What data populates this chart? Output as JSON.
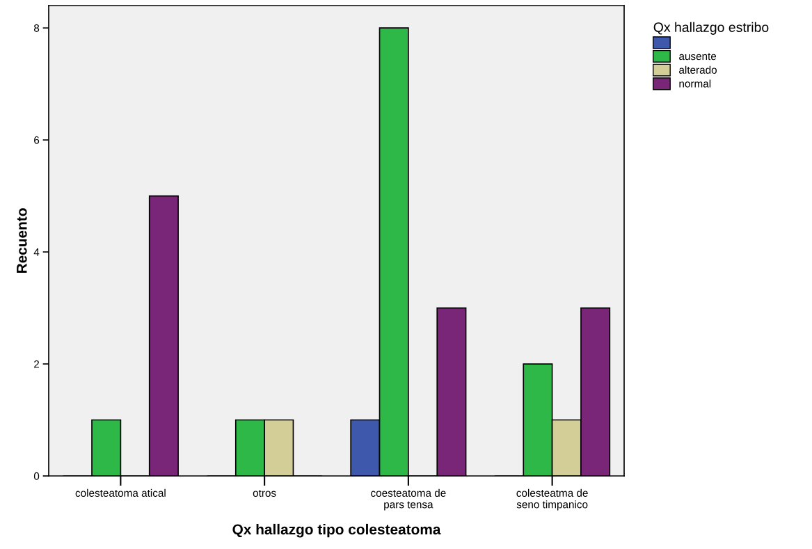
{
  "chart_data": {
    "type": "bar",
    "xlabel": "Qx hallazgo tipo colesteatoma",
    "ylabel": "Recuento",
    "legend_title": "Qx hallazgo estribo",
    "categories": [
      "colesteatoma atical",
      "otros",
      "coesteatoma de\npars tensa",
      "colesteatma de\nseno timpanico"
    ],
    "series": [
      {
        "color": "#3e58ac",
        "values": [
          0,
          0,
          1,
          0
        ]
      },
      {
        "name": "ausente",
        "color": "#2eb848",
        "values": [
          1,
          1,
          8,
          2
        ]
      },
      {
        "name": "alterado",
        "color": "#d3ce97",
        "values": [
          0,
          1,
          0,
          1
        ]
      },
      {
        "name": "normal",
        "color": "#7a2678",
        "values": [
          5,
          0,
          3,
          3
        ]
      }
    ],
    "ylim": [
      0,
      8.4
    ],
    "yticks": [
      0,
      2,
      4,
      6,
      8
    ],
    "grid": false,
    "legend": "top right"
  }
}
